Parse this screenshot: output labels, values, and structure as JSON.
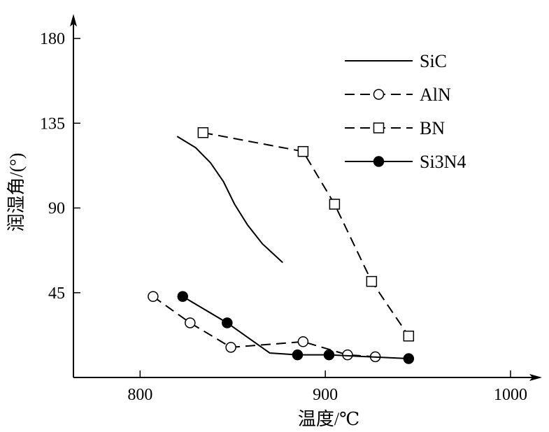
{
  "chart_data": {
    "type": "line",
    "title": "",
    "xlabel": "温度/℃",
    "ylabel": "润湿角/(°)",
    "xlim": [
      764,
      1017
    ],
    "ylim": [
      0,
      193
    ],
    "xticks": [
      800,
      900,
      1000
    ],
    "yticks": [
      45,
      90,
      135,
      180
    ],
    "xtick_labels": [
      "800",
      "900",
      "1000"
    ],
    "ytick_labels": [
      "45",
      "90",
      "135",
      "180"
    ],
    "grid": false,
    "legend_position": "top-right",
    "series": [
      {
        "name": "SiC",
        "legend_label": "SiC",
        "style": "solid",
        "marker": "none",
        "x": [
          820,
          830,
          838,
          845,
          851,
          858,
          866,
          877
        ],
        "y": [
          128,
          122,
          114,
          104,
          92,
          81,
          71,
          61
        ]
      },
      {
        "name": "AlN",
        "legend_label": "AlN",
        "style": "dashed",
        "marker": "open-circle",
        "x": [
          807,
          827,
          849,
          888,
          912,
          927
        ],
        "y": [
          43,
          29,
          16,
          19,
          12,
          11
        ]
      },
      {
        "name": "BN",
        "legend_label": "BN",
        "style": "dashed",
        "marker": "open-square",
        "x": [
          834,
          888,
          905,
          925,
          945
        ],
        "y": [
          130,
          120,
          92,
          51,
          22
        ]
      },
      {
        "name": "Si3N4",
        "legend_label": "Si3N4",
        "style": "solid",
        "marker": "filled-circle",
        "x": [
          823,
          847,
          870,
          885,
          902,
          945
        ],
        "y": [
          43,
          29,
          13,
          12,
          12,
          10
        ],
        "marker_points": [
          0,
          1,
          3,
          4,
          5
        ]
      }
    ]
  }
}
